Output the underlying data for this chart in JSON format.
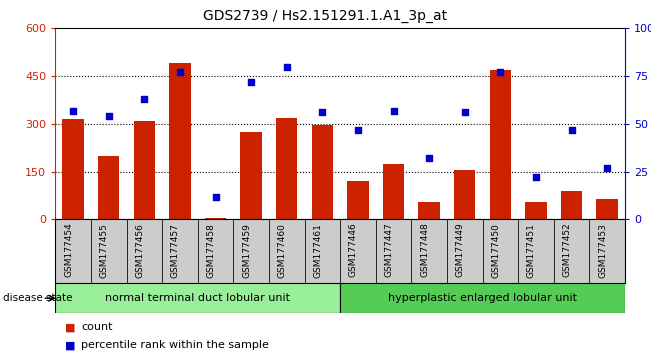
{
  "title": "GDS2739 / Hs2.151291.1.A1_3p_at",
  "samples": [
    "GSM177454",
    "GSM177455",
    "GSM177456",
    "GSM177457",
    "GSM177458",
    "GSM177459",
    "GSM177460",
    "GSM177461",
    "GSM177446",
    "GSM177447",
    "GSM177448",
    "GSM177449",
    "GSM177450",
    "GSM177451",
    "GSM177452",
    "GSM177453"
  ],
  "counts": [
    315,
    200,
    310,
    490,
    5,
    275,
    320,
    295,
    120,
    175,
    55,
    155,
    470,
    55,
    90,
    65
  ],
  "percentiles": [
    57,
    54,
    63,
    77,
    12,
    72,
    80,
    56,
    47,
    57,
    32,
    56,
    77,
    22,
    47,
    27
  ],
  "group1_label": "normal terminal duct lobular unit",
  "group2_label": "hyperplastic enlarged lobular unit",
  "group1_count": 8,
  "group2_count": 8,
  "bar_color": "#cc2200",
  "dot_color": "#0000cc",
  "ylim_left": [
    0,
    600
  ],
  "ylim_right": [
    0,
    100
  ],
  "yticks_left": [
    0,
    150,
    300,
    450,
    600
  ],
  "yticks_right": [
    0,
    25,
    50,
    75,
    100
  ],
  "grid_values": [
    150,
    300,
    450
  ],
  "group1_color": "#99ee99",
  "group2_color": "#55cc55",
  "bg_color": "#cccccc",
  "legend_count_label": "count",
  "legend_pct_label": "percentile rank within the sample",
  "disease_state_label": "disease state"
}
